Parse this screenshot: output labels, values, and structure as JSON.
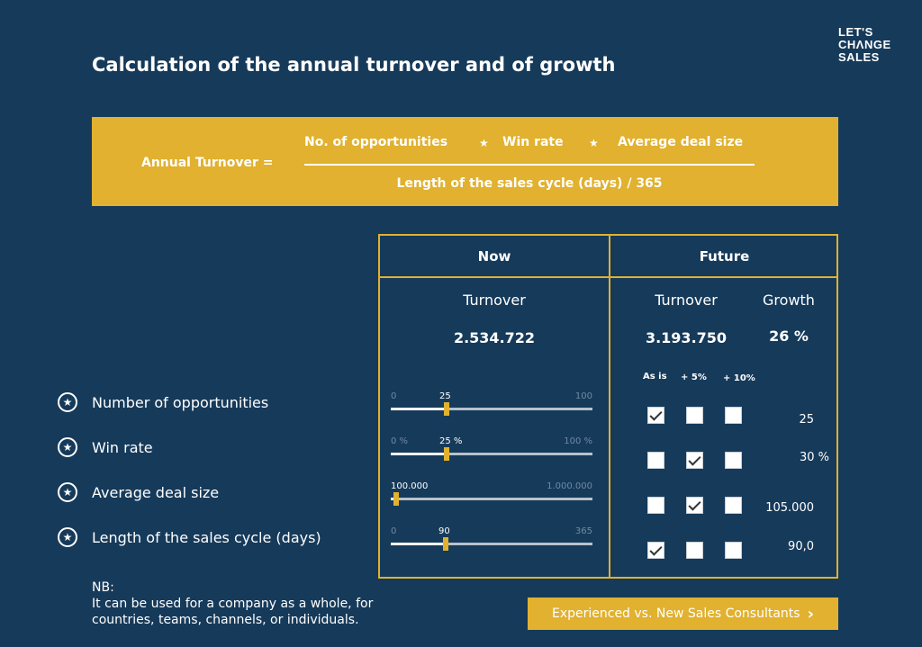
{
  "logo": {
    "line1": "LET'S",
    "line2": "CHΛNGE",
    "line3": "SALES"
  },
  "title": "Calculation of the annual turnover and of growth",
  "formula": {
    "lhs": "Annual Turnover =",
    "numerator": [
      "No. of opportunities",
      "Win rate",
      "Average deal size"
    ],
    "operator": "★",
    "denominator": "Length of the sales cycle (days) / 365"
  },
  "panel": {
    "now": {
      "header": "Now",
      "turnover_label": "Turnover",
      "turnover_value": "2.534.722",
      "sliders": [
        {
          "min": "0",
          "max": "100",
          "current": "25",
          "fraction": 0.25
        },
        {
          "min": "0 %",
          "max": "100 %",
          "current": "25 %",
          "fraction": 0.25
        },
        {
          "min": "100.000",
          "max": "1.000.000",
          "current": "",
          "fraction": 0.0
        },
        {
          "min": "0",
          "max": "365",
          "current": "90",
          "fraction": 0.2466
        }
      ]
    },
    "future": {
      "header": "Future",
      "turnover_label": "Turnover",
      "turnover_value": "3.193.750",
      "growth_label": "Growth",
      "growth_value": "26 %",
      "options": [
        "As is",
        "+ 5%",
        "+ 10%"
      ],
      "rows": [
        {
          "checked": [
            true,
            false,
            false
          ],
          "value": "25"
        },
        {
          "checked": [
            false,
            true,
            false
          ],
          "value": "30 %"
        },
        {
          "checked": [
            false,
            true,
            false
          ],
          "value": "105.000"
        },
        {
          "checked": [
            true,
            false,
            false
          ],
          "value": "90,0"
        }
      ]
    }
  },
  "factors": [
    "Number of opportunities",
    "Win rate",
    "Average deal size",
    "Length of the sales cycle (days)"
  ],
  "note": {
    "line1": "NB:",
    "line2": "It can be used for a company as a whole, for",
    "line3": "countries, teams, channels, or individuals."
  },
  "cta": {
    "label": "Experienced vs. New Sales Consultants",
    "icon": "chevron-right-icon"
  },
  "colors": {
    "background": "#163a5a",
    "accent": "#e1b12f"
  }
}
